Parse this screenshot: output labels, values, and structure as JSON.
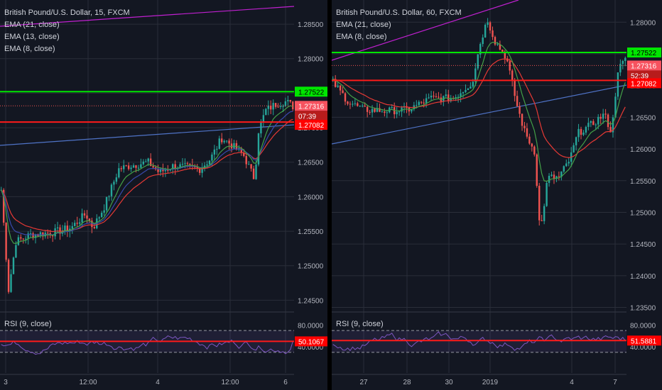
{
  "colors": {
    "background": "#131722",
    "grid": "#2a2e39",
    "text": "#d1d4dc",
    "axis_text": "#b2b5be",
    "candle_up": "#26a69a",
    "candle_down": "#ef5350",
    "ema21": "#e53935",
    "ema13": "#3949ab",
    "ema8": "#43a047",
    "resistance": "#00e600",
    "support": "#ff1a1a",
    "trend_blue": "#4f73c7",
    "trend_magenta": "#c020d0",
    "rsi_line": "#7e57c2",
    "rsi_band": "#7e57c2",
    "divider": "#000000"
  },
  "panes": [
    {
      "title": "British Pound/U.S. Dollar, 15, FXCM",
      "legend": [
        "EMA (21, close)",
        "EMA (13, close)",
        "EMA (8, close)"
      ],
      "rsi_label": "RSI (9, close)",
      "price_ticks": [
        "1.28500",
        "1.28000",
        "1.27500",
        "1.27000",
        "1.26500",
        "1.26000",
        "1.25500",
        "1.25000",
        "1.24500"
      ],
      "price_tick_values": [
        1.285,
        1.28,
        1.275,
        1.27,
        1.265,
        1.26,
        1.255,
        1.25,
        1.245
      ],
      "rsi_ticks": [
        "80.0000",
        "40.0000"
      ],
      "x_ticks": [
        "3",
        "12:00",
        "4",
        "12:00",
        "6"
      ],
      "tags": {
        "resistance": "1.27522",
        "last": "1.27316",
        "countdown": "07:39",
        "support": "1.27082",
        "rsi": "50.1067"
      },
      "chart_data": {
        "type": "candlestick",
        "instrument": "British Pound/U.S. Dollar",
        "timeframe": "15",
        "ylim": [
          1.2435,
          1.2885
        ],
        "horizontal_levels": {
          "resistance": 1.27522,
          "support": 1.27082,
          "last": 1.27316
        },
        "rsi": {
          "period": 9,
          "last": 50.1067,
          "bands": [
            70,
            30
          ]
        },
        "path": [
          [
            0,
            1.261
          ],
          [
            10,
            1.2465
          ],
          [
            20,
            1.2535
          ],
          [
            40,
            1.2545
          ],
          [
            70,
            1.2548
          ],
          [
            95,
            1.2555
          ],
          [
            115,
            1.2575
          ],
          [
            125,
            1.2555
          ],
          [
            140,
            1.2585
          ],
          [
            160,
            1.264
          ],
          [
            175,
            1.2645
          ],
          [
            200,
            1.265
          ],
          [
            215,
            1.2635
          ],
          [
            235,
            1.2645
          ],
          [
            270,
            1.264
          ],
          [
            285,
            1.2655
          ],
          [
            300,
            1.2685
          ],
          [
            310,
            1.2678
          ],
          [
            330,
            1.266
          ],
          [
            345,
            1.2625
          ],
          [
            350,
            1.2695
          ],
          [
            360,
            1.2725
          ],
          [
            375,
            1.2735
          ],
          [
            388,
            1.2738
          ],
          [
            397,
            1.2731
          ]
        ]
      }
    },
    {
      "title": "British Pound/U.S. Dollar, 60, FXCM",
      "legend": [
        "EMA (21, close)",
        "EMA (8, close)"
      ],
      "rsi_label": "RSI (9, close)",
      "price_ticks": [
        "1.28000",
        "1.27500",
        "1.27000",
        "1.26500",
        "1.26000",
        "1.25500",
        "1.25000",
        "1.24500",
        "1.24000",
        "1.23500"
      ],
      "price_tick_values": [
        1.28,
        1.275,
        1.27,
        1.265,
        1.26,
        1.255,
        1.25,
        1.245,
        1.24,
        1.235
      ],
      "rsi_ticks": [
        "80.0000",
        "40.0000"
      ],
      "x_ticks": [
        "27",
        "28",
        "30",
        "2019",
        "4",
        "7"
      ],
      "tags": {
        "resistance": "1.27522",
        "last": "1.27316",
        "countdown": "52:39",
        "support": "1.27082",
        "rsi": "51.5881"
      },
      "chart_data": {
        "type": "candlestick",
        "instrument": "British Pound/U.S. Dollar",
        "timeframe": "60",
        "ylim": [
          1.2345,
          1.2835
        ],
        "horizontal_levels": {
          "resistance": 1.27522,
          "support": 1.27082,
          "last": 1.27316
        },
        "rsi": {
          "period": 9,
          "last": 51.5881,
          "bands": [
            70,
            30
          ]
        },
        "path": [
          [
            0,
            1.2705
          ],
          [
            20,
            1.2675
          ],
          [
            40,
            1.2662
          ],
          [
            70,
            1.266
          ],
          [
            100,
            1.2662
          ],
          [
            130,
            1.268
          ],
          [
            160,
            1.268
          ],
          [
            185,
            1.2705
          ],
          [
            195,
            1.2765
          ],
          [
            205,
            1.2805
          ],
          [
            215,
            1.277
          ],
          [
            230,
            1.2745
          ],
          [
            245,
            1.2665
          ],
          [
            255,
            1.2625
          ],
          [
            268,
            1.2595
          ],
          [
            275,
            1.2465
          ],
          [
            285,
            1.2555
          ],
          [
            300,
            1.2555
          ],
          [
            315,
            1.2585
          ],
          [
            325,
            1.2625
          ],
          [
            345,
            1.264
          ],
          [
            360,
            1.2655
          ],
          [
            370,
            1.2625
          ],
          [
            378,
            1.2725
          ],
          [
            388,
            1.274
          ]
        ]
      }
    }
  ]
}
